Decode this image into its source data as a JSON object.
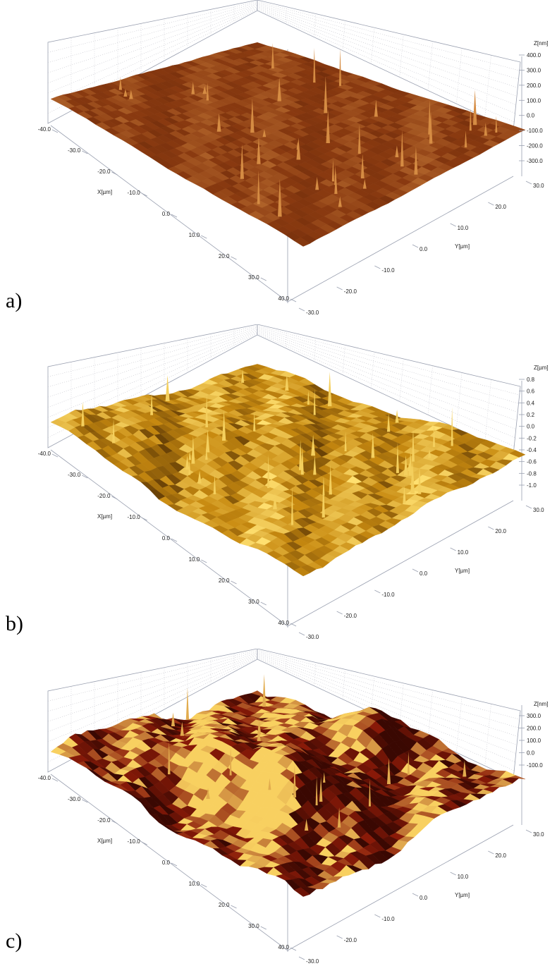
{
  "figure": {
    "panels": [
      {
        "letter": "a)",
        "x_axis": {
          "label": "X[µm]",
          "ticks": [
            "-40.0",
            "-30.0",
            "-20.0",
            "-10.0",
            "0.0",
            "10.0",
            "20.0",
            "30.0",
            "40.0"
          ]
        },
        "y_axis": {
          "label": "Y[µm]",
          "ticks": [
            "30.0",
            "20.0",
            "10.0",
            "0.0",
            "-10.0",
            "-20.0",
            "-30.0"
          ]
        },
        "z_axis": {
          "label": "Z[nm]",
          "ticks": [
            "400.0",
            "300.0",
            "200.0",
            "100.0",
            "0.0",
            "-100.0",
            "-200.0",
            "-300.0"
          ]
        },
        "surface": {
          "base_color": "#8a3a10",
          "highlight_color": "#e8a050",
          "shadow_color": "#4a1804",
          "roughness": 0.15,
          "spikes": 40
        }
      },
      {
        "letter": "b)",
        "x_axis": {
          "label": "X[µm]",
          "ticks": [
            "-40.0",
            "-30.0",
            "-20.0",
            "-10.0",
            "0.0",
            "10.0",
            "20.0",
            "30.0",
            "40.0"
          ]
        },
        "y_axis": {
          "label": "Y[µm]",
          "ticks": [
            "30.0",
            "20.0",
            "10.0",
            "0.0",
            "-10.0",
            "-20.0",
            "-30.0"
          ]
        },
        "z_axis": {
          "label": "Z[µm]",
          "ticks": [
            "0.8",
            "0.6",
            "0.4",
            "0.2",
            "0.0",
            "-0.2",
            "-0.4",
            "-0.6",
            "-0.8",
            "-1.0"
          ]
        },
        "surface": {
          "base_color": "#c88a10",
          "highlight_color": "#ffe070",
          "shadow_color": "#6a4206",
          "roughness": 0.55,
          "spikes": 45
        }
      },
      {
        "letter": "c)",
        "x_axis": {
          "label": "X[µm]",
          "ticks": [
            "-40.0",
            "-30.0",
            "-20.0",
            "-10.0",
            "0.0",
            "10.0",
            "20.0",
            "30.0",
            "40.0"
          ]
        },
        "y_axis": {
          "label": "Y[µm]",
          "ticks": [
            "30.0",
            "20.0",
            "10.0",
            "0.0",
            "-10.0",
            "-20.0",
            "-30.0"
          ]
        },
        "z_axis": {
          "label": "Z[nm]",
          "ticks": [
            "300.0",
            "200.0",
            "100.0",
            "0.0",
            "-100.0"
          ]
        },
        "surface": {
          "base_color": "#8a1a08",
          "highlight_color": "#f8d060",
          "shadow_color": "#3a0802",
          "roughness": 1.0,
          "spikes": 20
        }
      }
    ]
  }
}
